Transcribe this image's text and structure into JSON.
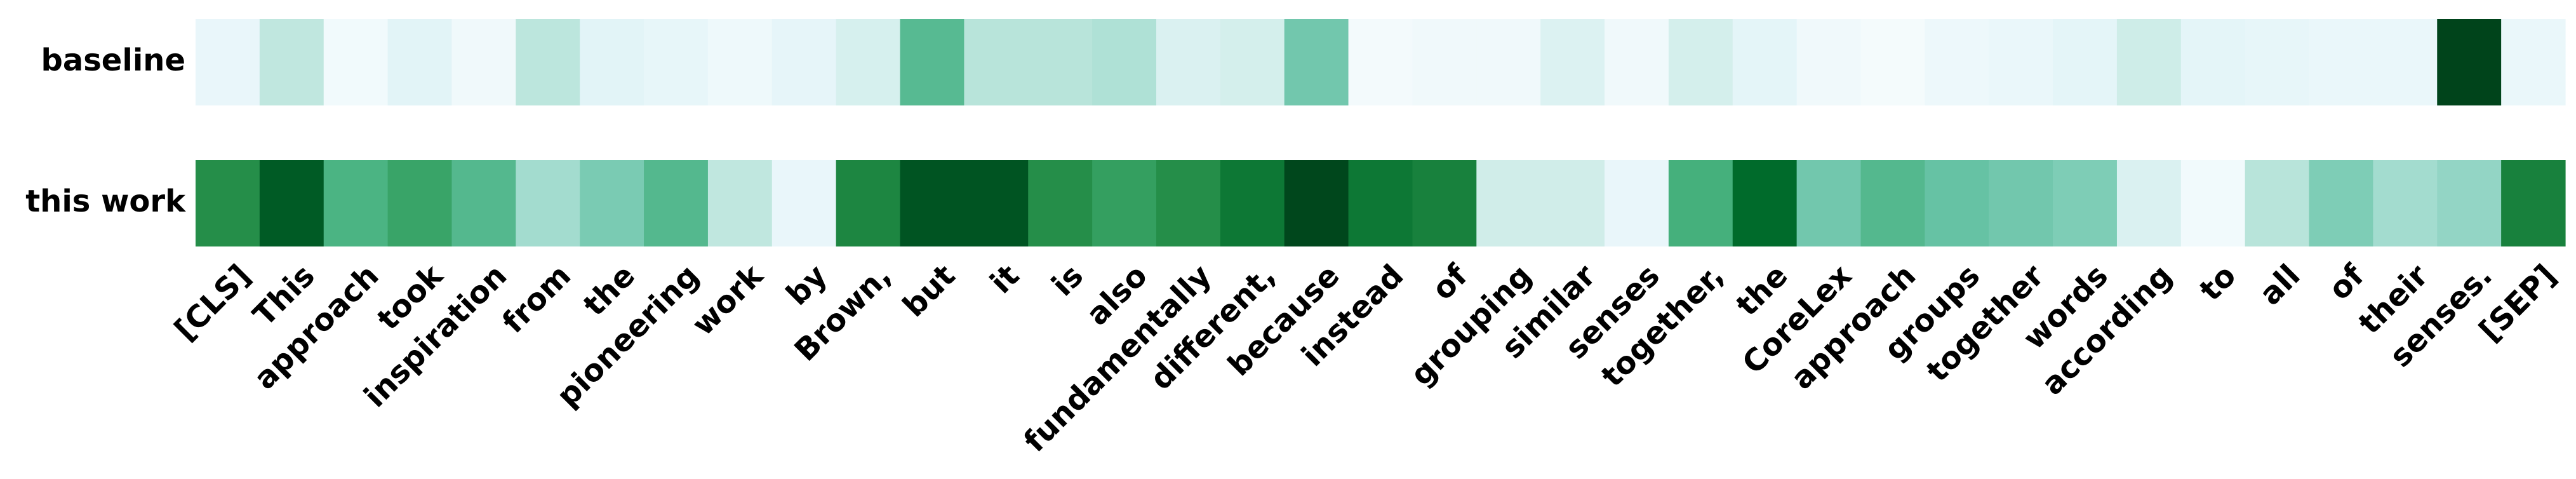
{
  "chart_data": {
    "type": "heatmap",
    "colormap": "greens",
    "value_range": [
      0,
      1
    ],
    "rows": [
      "baseline",
      "this work"
    ],
    "tokens": [
      "[CLS]",
      "This",
      "approach",
      "took",
      "inspiration",
      "from",
      "the",
      "pioneering",
      "work",
      "by",
      "Brown,",
      "but",
      "it",
      "is",
      "also",
      "fundamentally",
      "different,",
      "because",
      "instead",
      "of",
      "grouping",
      "similar",
      "senses",
      "together,",
      "the",
      "CoreLex",
      "approach",
      "groups",
      "together",
      "words",
      "according",
      "to",
      "all",
      "of",
      "their",
      "senses.",
      "[SEP]"
    ],
    "values": [
      [
        0.1,
        0.28,
        0.04,
        0.14,
        0.05,
        0.29,
        0.14,
        0.11,
        0.06,
        0.12,
        0.2,
        0.55,
        0.3,
        0.3,
        0.32,
        0.18,
        0.21,
        0.47,
        0.03,
        0.05,
        0.05,
        0.17,
        0.05,
        0.21,
        0.13,
        0.05,
        0.02,
        0.07,
        0.09,
        0.13,
        0.24,
        0.13,
        0.11,
        0.09,
        0.09,
        1.0,
        0.09
      ],
      [
        0.74,
        0.93,
        0.59,
        0.66,
        0.56,
        0.35,
        0.45,
        0.56,
        0.28,
        0.1,
        0.77,
        0.95,
        0.95,
        0.74,
        0.68,
        0.74,
        0.83,
        0.99,
        0.83,
        0.79,
        0.23,
        0.23,
        0.1,
        0.61,
        0.88,
        0.47,
        0.56,
        0.5,
        0.47,
        0.44,
        0.18,
        0.04,
        0.3,
        0.44,
        0.35,
        0.39,
        0.79
      ]
    ],
    "grid": false,
    "legend": false
  }
}
